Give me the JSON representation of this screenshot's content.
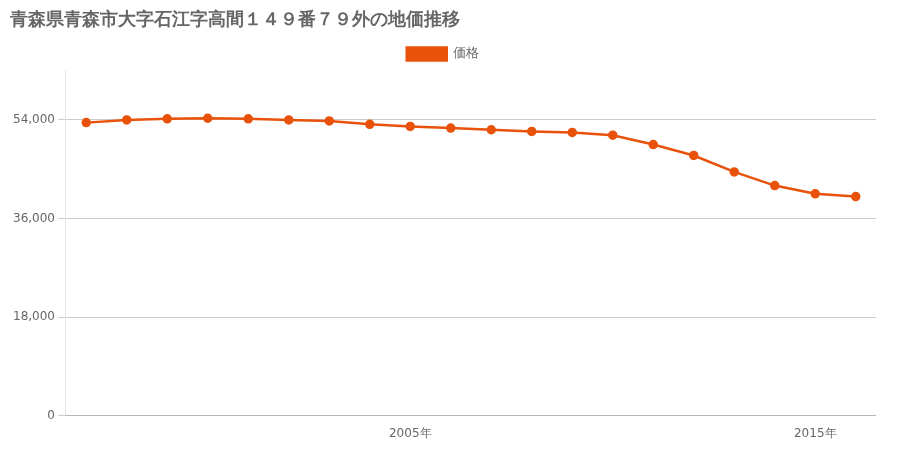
{
  "chart_data": {
    "type": "line",
    "title": "青森県青森市大字石江字高間１４９番７９外の地価推移",
    "x": [
      1997,
      1998,
      1999,
      2000,
      2001,
      2002,
      2003,
      2004,
      2005,
      2006,
      2007,
      2008,
      2009,
      2010,
      2011,
      2012,
      2013,
      2014,
      2015,
      2016
    ],
    "series": [
      {
        "name": "価格",
        "color": "#e8520a",
        "marker": "circle",
        "values": [
          53500,
          54000,
          54200,
          54300,
          54200,
          54000,
          53800,
          53200,
          52800,
          52500,
          52200,
          51900,
          51700,
          51200,
          49500,
          47500,
          44500,
          42000,
          40500,
          40000
        ]
      }
    ],
    "xlim": [
      1996.5,
      2016.5
    ],
    "xticks": [
      {
        "value": 2005,
        "label": "2005年"
      },
      {
        "value": 2015,
        "label": "2015年"
      }
    ],
    "ylim": [
      0,
      63000
    ],
    "yticks": [
      0,
      {
        "value": 18000,
        "label": "18,000"
      },
      {
        "value": 36000,
        "label": "36,000"
      },
      {
        "value": 54000,
        "label": "54,000"
      }
    ],
    "grid": "y",
    "legend": "top"
  }
}
